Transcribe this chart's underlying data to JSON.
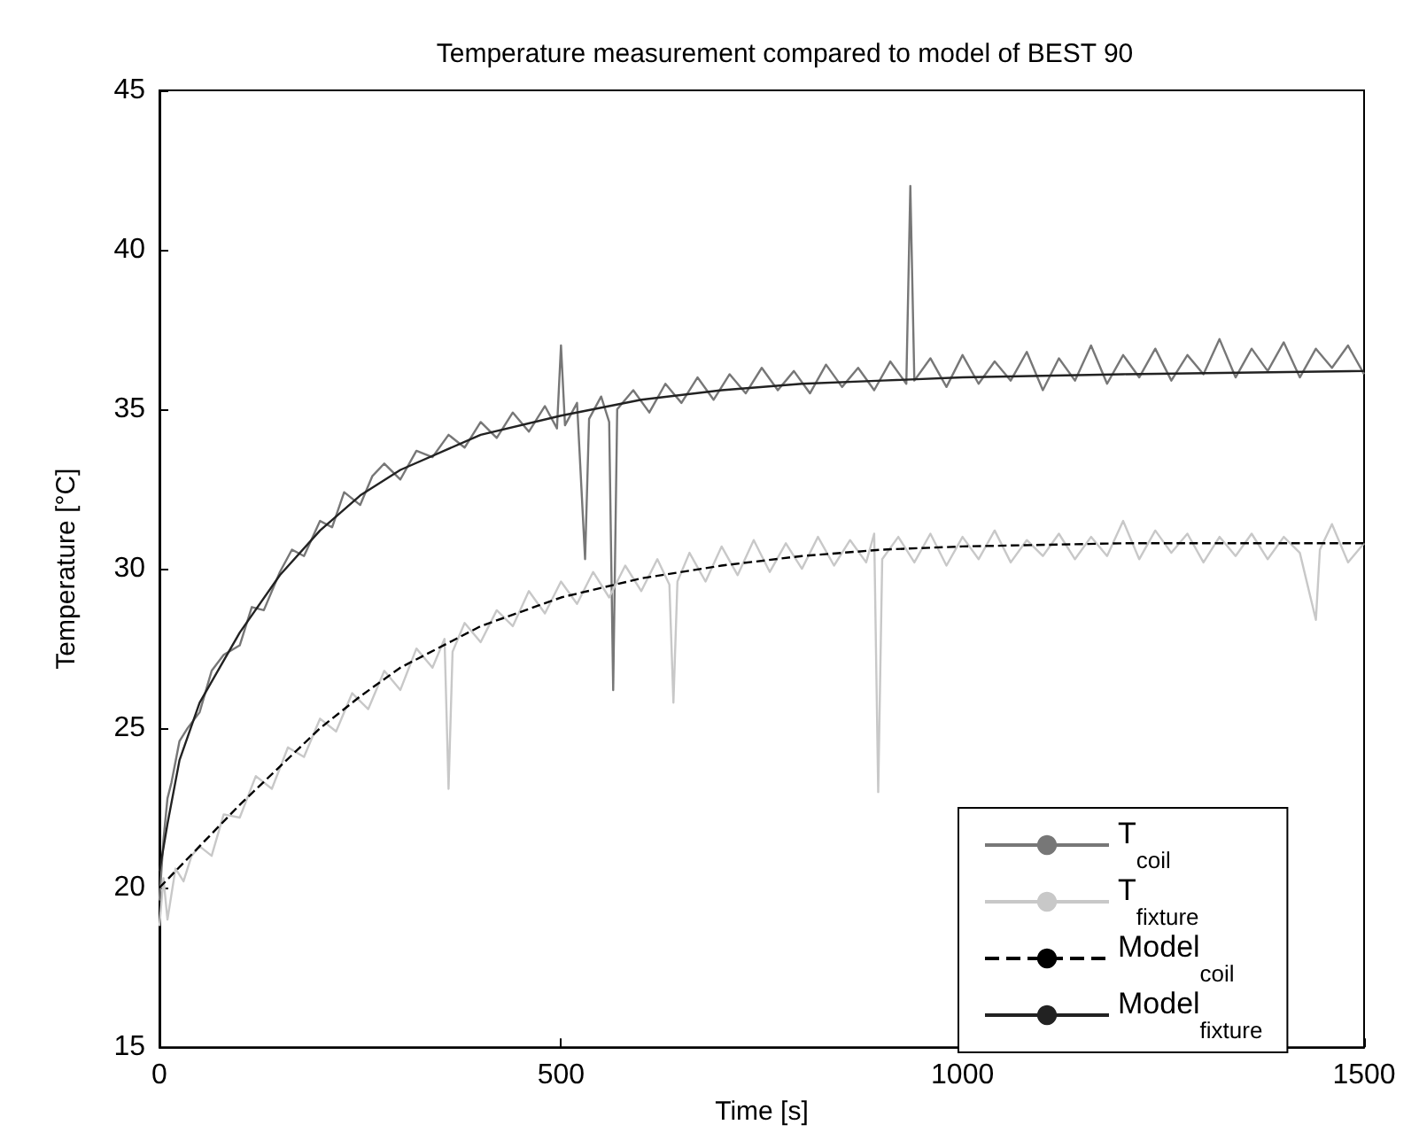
{
  "chart_data": {
    "type": "line",
    "title": "Temperature measurement compared to model of BEST 90",
    "xlabel": "Time [s]",
    "ylabel": "Temperature [°C]",
    "xlim": [
      0,
      1500
    ],
    "xticks": [
      0,
      500,
      1000,
      1500
    ],
    "ylim": [
      15,
      45
    ],
    "yticks": [
      15,
      20,
      25,
      30,
      35,
      40,
      45
    ],
    "grid": false,
    "legend": "bottom right",
    "marker": "none",
    "series": [
      {
        "name": "T$_{coil}$",
        "color": "#777777",
        "line_style": "solid",
        "x": [
          0,
          5,
          10,
          15,
          25,
          35,
          50,
          65,
          80,
          100,
          115,
          130,
          150,
          165,
          180,
          200,
          215,
          230,
          250,
          265,
          280,
          300,
          320,
          340,
          360,
          380,
          400,
          420,
          440,
          460,
          480,
          495,
          500,
          505,
          520,
          530,
          535,
          550,
          560,
          565,
          570,
          590,
          610,
          630,
          650,
          670,
          690,
          710,
          730,
          750,
          770,
          790,
          810,
          830,
          850,
          870,
          890,
          910,
          930,
          935,
          940,
          960,
          980,
          1000,
          1020,
          1040,
          1060,
          1080,
          1100,
          1120,
          1140,
          1160,
          1180,
          1200,
          1220,
          1240,
          1260,
          1280,
          1300,
          1320,
          1340,
          1360,
          1380,
          1400,
          1420,
          1440,
          1460,
          1480,
          1500
        ],
        "values": [
          19.6,
          21.5,
          22.8,
          23.3,
          24.6,
          25.0,
          25.5,
          26.8,
          27.3,
          27.6,
          28.8,
          28.7,
          29.9,
          30.6,
          30.4,
          31.5,
          31.3,
          32.4,
          32.0,
          32.9,
          33.3,
          32.8,
          33.7,
          33.5,
          34.2,
          33.8,
          34.6,
          34.1,
          34.9,
          34.3,
          35.1,
          34.4,
          37.0,
          34.5,
          35.2,
          30.3,
          34.7,
          35.4,
          34.6,
          26.2,
          35.0,
          35.6,
          34.9,
          35.8,
          35.2,
          36.0,
          35.3,
          36.1,
          35.5,
          36.3,
          35.6,
          36.2,
          35.5,
          36.4,
          35.7,
          36.3,
          35.6,
          36.5,
          35.8,
          42.0,
          35.9,
          36.6,
          35.7,
          36.7,
          35.8,
          36.5,
          35.9,
          36.8,
          35.6,
          36.6,
          35.9,
          37.0,
          35.8,
          36.7,
          36.0,
          36.9,
          35.9,
          36.7,
          36.1,
          37.2,
          36.0,
          36.9,
          36.2,
          37.1,
          36.0,
          36.9,
          36.3,
          37.0,
          36.1
        ]
      },
      {
        "name": "T$_{fixture}$",
        "color": "#c8c8c8",
        "line_style": "solid",
        "x": [
          0,
          5,
          10,
          20,
          30,
          40,
          50,
          65,
          80,
          100,
          120,
          140,
          160,
          180,
          200,
          220,
          240,
          260,
          280,
          300,
          320,
          340,
          355,
          360,
          365,
          380,
          400,
          420,
          440,
          460,
          480,
          500,
          520,
          540,
          560,
          580,
          600,
          620,
          635,
          640,
          645,
          660,
          680,
          700,
          720,
          740,
          760,
          780,
          800,
          820,
          840,
          860,
          880,
          890,
          895,
          900,
          920,
          940,
          960,
          980,
          1000,
          1020,
          1040,
          1060,
          1080,
          1100,
          1120,
          1140,
          1160,
          1180,
          1200,
          1220,
          1240,
          1260,
          1280,
          1300,
          1320,
          1340,
          1360,
          1380,
          1400,
          1420,
          1440,
          1445,
          1460,
          1480,
          1500
        ],
        "values": [
          18.8,
          20.3,
          19.0,
          20.6,
          20.2,
          21.0,
          21.3,
          21.0,
          22.3,
          22.2,
          23.5,
          23.1,
          24.4,
          24.1,
          25.3,
          24.9,
          26.1,
          25.6,
          26.8,
          26.2,
          27.5,
          26.9,
          27.8,
          23.1,
          27.4,
          28.3,
          27.7,
          28.7,
          28.2,
          29.3,
          28.6,
          29.6,
          28.9,
          29.9,
          29.1,
          30.1,
          29.3,
          30.3,
          29.5,
          25.8,
          29.6,
          30.5,
          29.6,
          30.7,
          29.8,
          30.9,
          29.9,
          30.8,
          30.0,
          31.0,
          30.1,
          30.9,
          30.2,
          31.1,
          23.0,
          30.3,
          31.0,
          30.2,
          31.1,
          30.1,
          31.0,
          30.3,
          31.2,
          30.2,
          30.9,
          30.4,
          31.1,
          30.3,
          31.0,
          30.4,
          31.5,
          30.3,
          31.2,
          30.5,
          31.1,
          30.2,
          31.0,
          30.4,
          31.1,
          30.3,
          31.0,
          30.5,
          28.4,
          30.6,
          31.4,
          30.2,
          30.8
        ]
      },
      {
        "name": "Model$_{coil}$",
        "color": "#000000",
        "line_style": "dashed",
        "x": [
          0,
          50,
          100,
          150,
          200,
          250,
          300,
          400,
          500,
          600,
          700,
          800,
          900,
          1000,
          1200,
          1500
        ],
        "values": [
          20.0,
          21.3,
          22.6,
          23.8,
          25.0,
          26.0,
          26.9,
          28.2,
          29.1,
          29.7,
          30.1,
          30.4,
          30.6,
          30.7,
          30.8,
          30.8
        ]
      },
      {
        "name": "Model$_{fixture}$",
        "color": "#222222",
        "line_style": "solid",
        "x": [
          0,
          10,
          25,
          50,
          100,
          150,
          200,
          250,
          300,
          400,
          500,
          600,
          700,
          800,
          900,
          1000,
          1200,
          1500
        ],
        "values": [
          20.5,
          22.0,
          24.0,
          25.8,
          28.0,
          29.8,
          31.2,
          32.3,
          33.1,
          34.2,
          34.8,
          35.3,
          35.6,
          35.8,
          35.9,
          36.0,
          36.1,
          36.2
        ]
      }
    ]
  }
}
